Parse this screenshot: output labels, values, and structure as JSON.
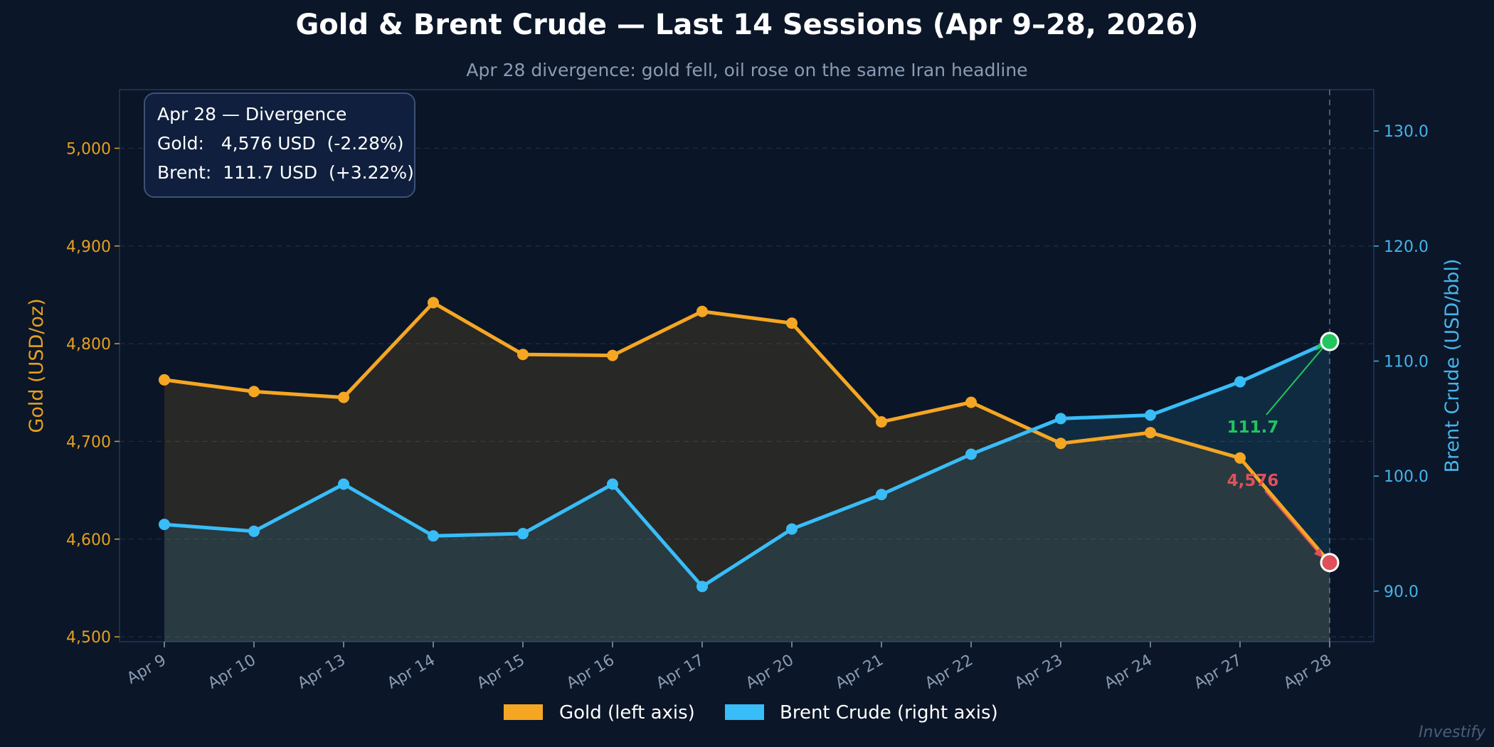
{
  "chart_data": {
    "type": "line",
    "title": "Gold & Brent Crude — Last 14 Sessions (Apr 9–28, 2026)",
    "subtitle": "Apr 28 divergence: gold fell, oil rose on the same Iran headline",
    "categories": [
      "Apr 9",
      "Apr 10",
      "Apr 13",
      "Apr 14",
      "Apr 15",
      "Apr 16",
      "Apr 17",
      "Apr 20",
      "Apr 21",
      "Apr 22",
      "Apr 23",
      "Apr 24",
      "Apr 27",
      "Apr 28"
    ],
    "series": [
      {
        "name": "Gold (left axis)",
        "axis": "left",
        "color": "#f5a623",
        "values": [
          4763,
          4751,
          4745,
          4842,
          4789,
          4788,
          4833,
          4821,
          4720,
          4740,
          4698,
          4709,
          4683,
          4576
        ]
      },
      {
        "name": "Brent Crude (right axis)",
        "axis": "right",
        "color": "#38bdf8",
        "values": [
          95.8,
          95.2,
          99.3,
          94.8,
          95.0,
          99.3,
          90.4,
          95.4,
          98.4,
          101.9,
          105.0,
          105.3,
          108.2,
          111.7
        ]
      }
    ],
    "y_left": {
      "label": "Gold (USD/oz)",
      "ylim": [
        4495,
        5060
      ],
      "ticks": [
        4500,
        4600,
        4700,
        4800,
        4900,
        5000
      ],
      "tick_labels": [
        "4,500",
        "4,600",
        "4,700",
        "4,800",
        "4,900",
        "5,000"
      ]
    },
    "y_right": {
      "label": "Brent Crude (USD/bbl)",
      "ylim": [
        85.6,
        133.6
      ],
      "ticks": [
        90,
        100,
        110,
        120,
        130
      ],
      "tick_labels": [
        "90.0",
        "100.0",
        "110.0",
        "120.0",
        "130.0"
      ]
    },
    "grid": true,
    "legend_position": "bottom-center",
    "highlight": {
      "category": "Apr 28",
      "gold_label": "4,576",
      "brent_label": "111.7",
      "gold_marker_color": "#e0505a",
      "brent_marker_color": "#22c55e"
    },
    "info_box": {
      "title": "Apr 28 — Divergence",
      "gold_line": "Gold:   4,576 USD  (-2.28%)",
      "brent_line": "Brent:  111.7 USD  (+3.22%)"
    },
    "watermark": "Investify"
  }
}
